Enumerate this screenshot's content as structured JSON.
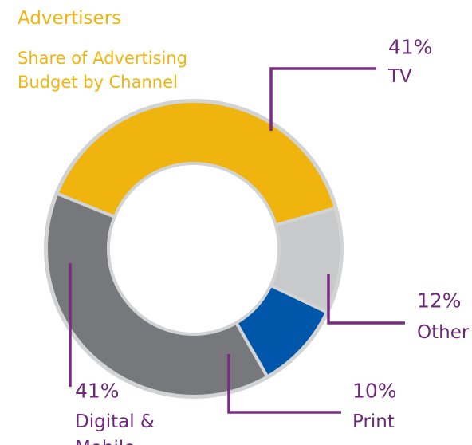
{
  "chart_data": {
    "type": "pie",
    "title": "Advertisers",
    "subtitle": [
      "Share of Advertising",
      "Budget by Channel"
    ],
    "slices": [
      {
        "label": "TV",
        "value": 41,
        "display": "41%",
        "color": "#f0b40f"
      },
      {
        "label": "Other",
        "value": 12,
        "display": "12%",
        "color": "#c8c9cb"
      },
      {
        "label": "Print",
        "value": 10,
        "display": "10%",
        "color": "#0056a8"
      },
      {
        "label": "Digital & Mobile",
        "value": 41,
        "display": "41%",
        "color": "#77787b"
      }
    ],
    "label_lines": {
      "Digital & Mobile": [
        "Digital &",
        "Mobile"
      ]
    },
    "legend": "none",
    "style": "donut"
  }
}
